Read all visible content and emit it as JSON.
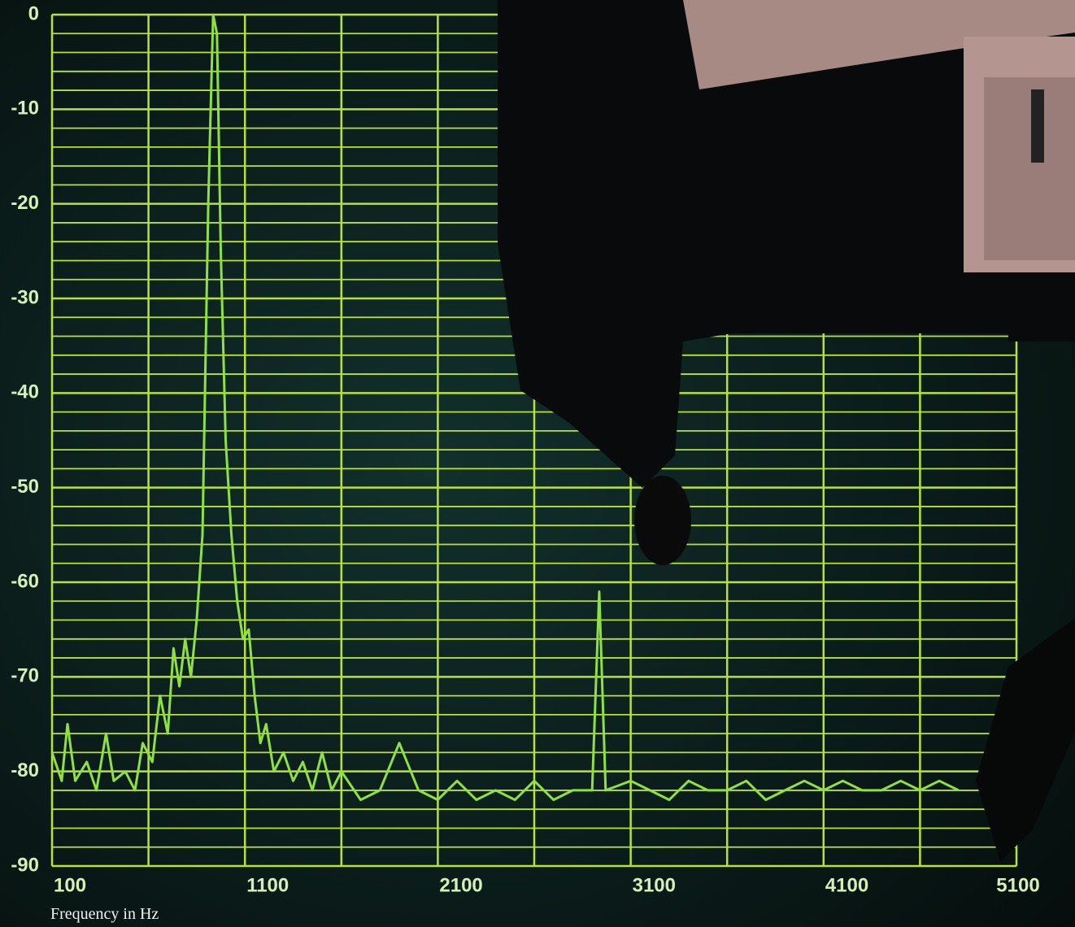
{
  "chart_data": {
    "type": "line",
    "xlabel": "Frequency in Hz",
    "x": [
      100,
      150,
      180,
      220,
      280,
      330,
      380,
      420,
      480,
      530,
      570,
      620,
      660,
      700,
      730,
      760,
      790,
      820,
      850,
      880,
      910,
      935,
      955,
      975,
      1000,
      1030,
      1060,
      1090,
      1120,
      1150,
      1180,
      1210,
      1250,
      1300,
      1350,
      1400,
      1450,
      1500,
      1550,
      1600,
      1700,
      1800,
      1900,
      2000,
      2100,
      2200,
      2300,
      2400,
      2500,
      2600,
      2700,
      2800,
      2900,
      2937,
      2970,
      3100,
      3200,
      3300,
      3400,
      3500,
      3600,
      3700,
      3800,
      3900,
      4000,
      4100,
      4200,
      4300,
      4400,
      4500,
      4600,
      4700,
      4800
    ],
    "values": [
      -78,
      -81,
      -75,
      -81,
      -79,
      -82,
      -76,
      -81,
      -80,
      -82,
      -77,
      -79,
      -72,
      -76,
      -67,
      -71,
      -66,
      -70,
      -64,
      -55,
      -20,
      0,
      -2,
      -25,
      -45,
      -55,
      -62,
      -66,
      -65,
      -72,
      -77,
      -75,
      -80,
      -78,
      -81,
      -79,
      -82,
      -78,
      -82,
      -80,
      -83,
      -82,
      -77,
      -82,
      -83,
      -81,
      -83,
      -82,
      -83,
      -81,
      -83,
      -82,
      -82,
      -61,
      -82,
      -81,
      -82,
      -83,
      -81,
      -82,
      -82,
      -81,
      -83,
      -82,
      -81,
      -82,
      -81,
      -82,
      -82,
      -81,
      -82,
      -81,
      -82
    ],
    "color": "#8fe040",
    "xlim": [
      100,
      5100
    ],
    "xticks": [
      100,
      1100,
      2100,
      3100,
      4100,
      5100
    ],
    "ylim": [
      -90,
      0
    ],
    "yticks": [
      0,
      -10,
      -20,
      -30,
      -40,
      -50,
      -60,
      -70,
      -80,
      -90
    ],
    "grid": true,
    "grid_color": "#b8e23a"
  }
}
